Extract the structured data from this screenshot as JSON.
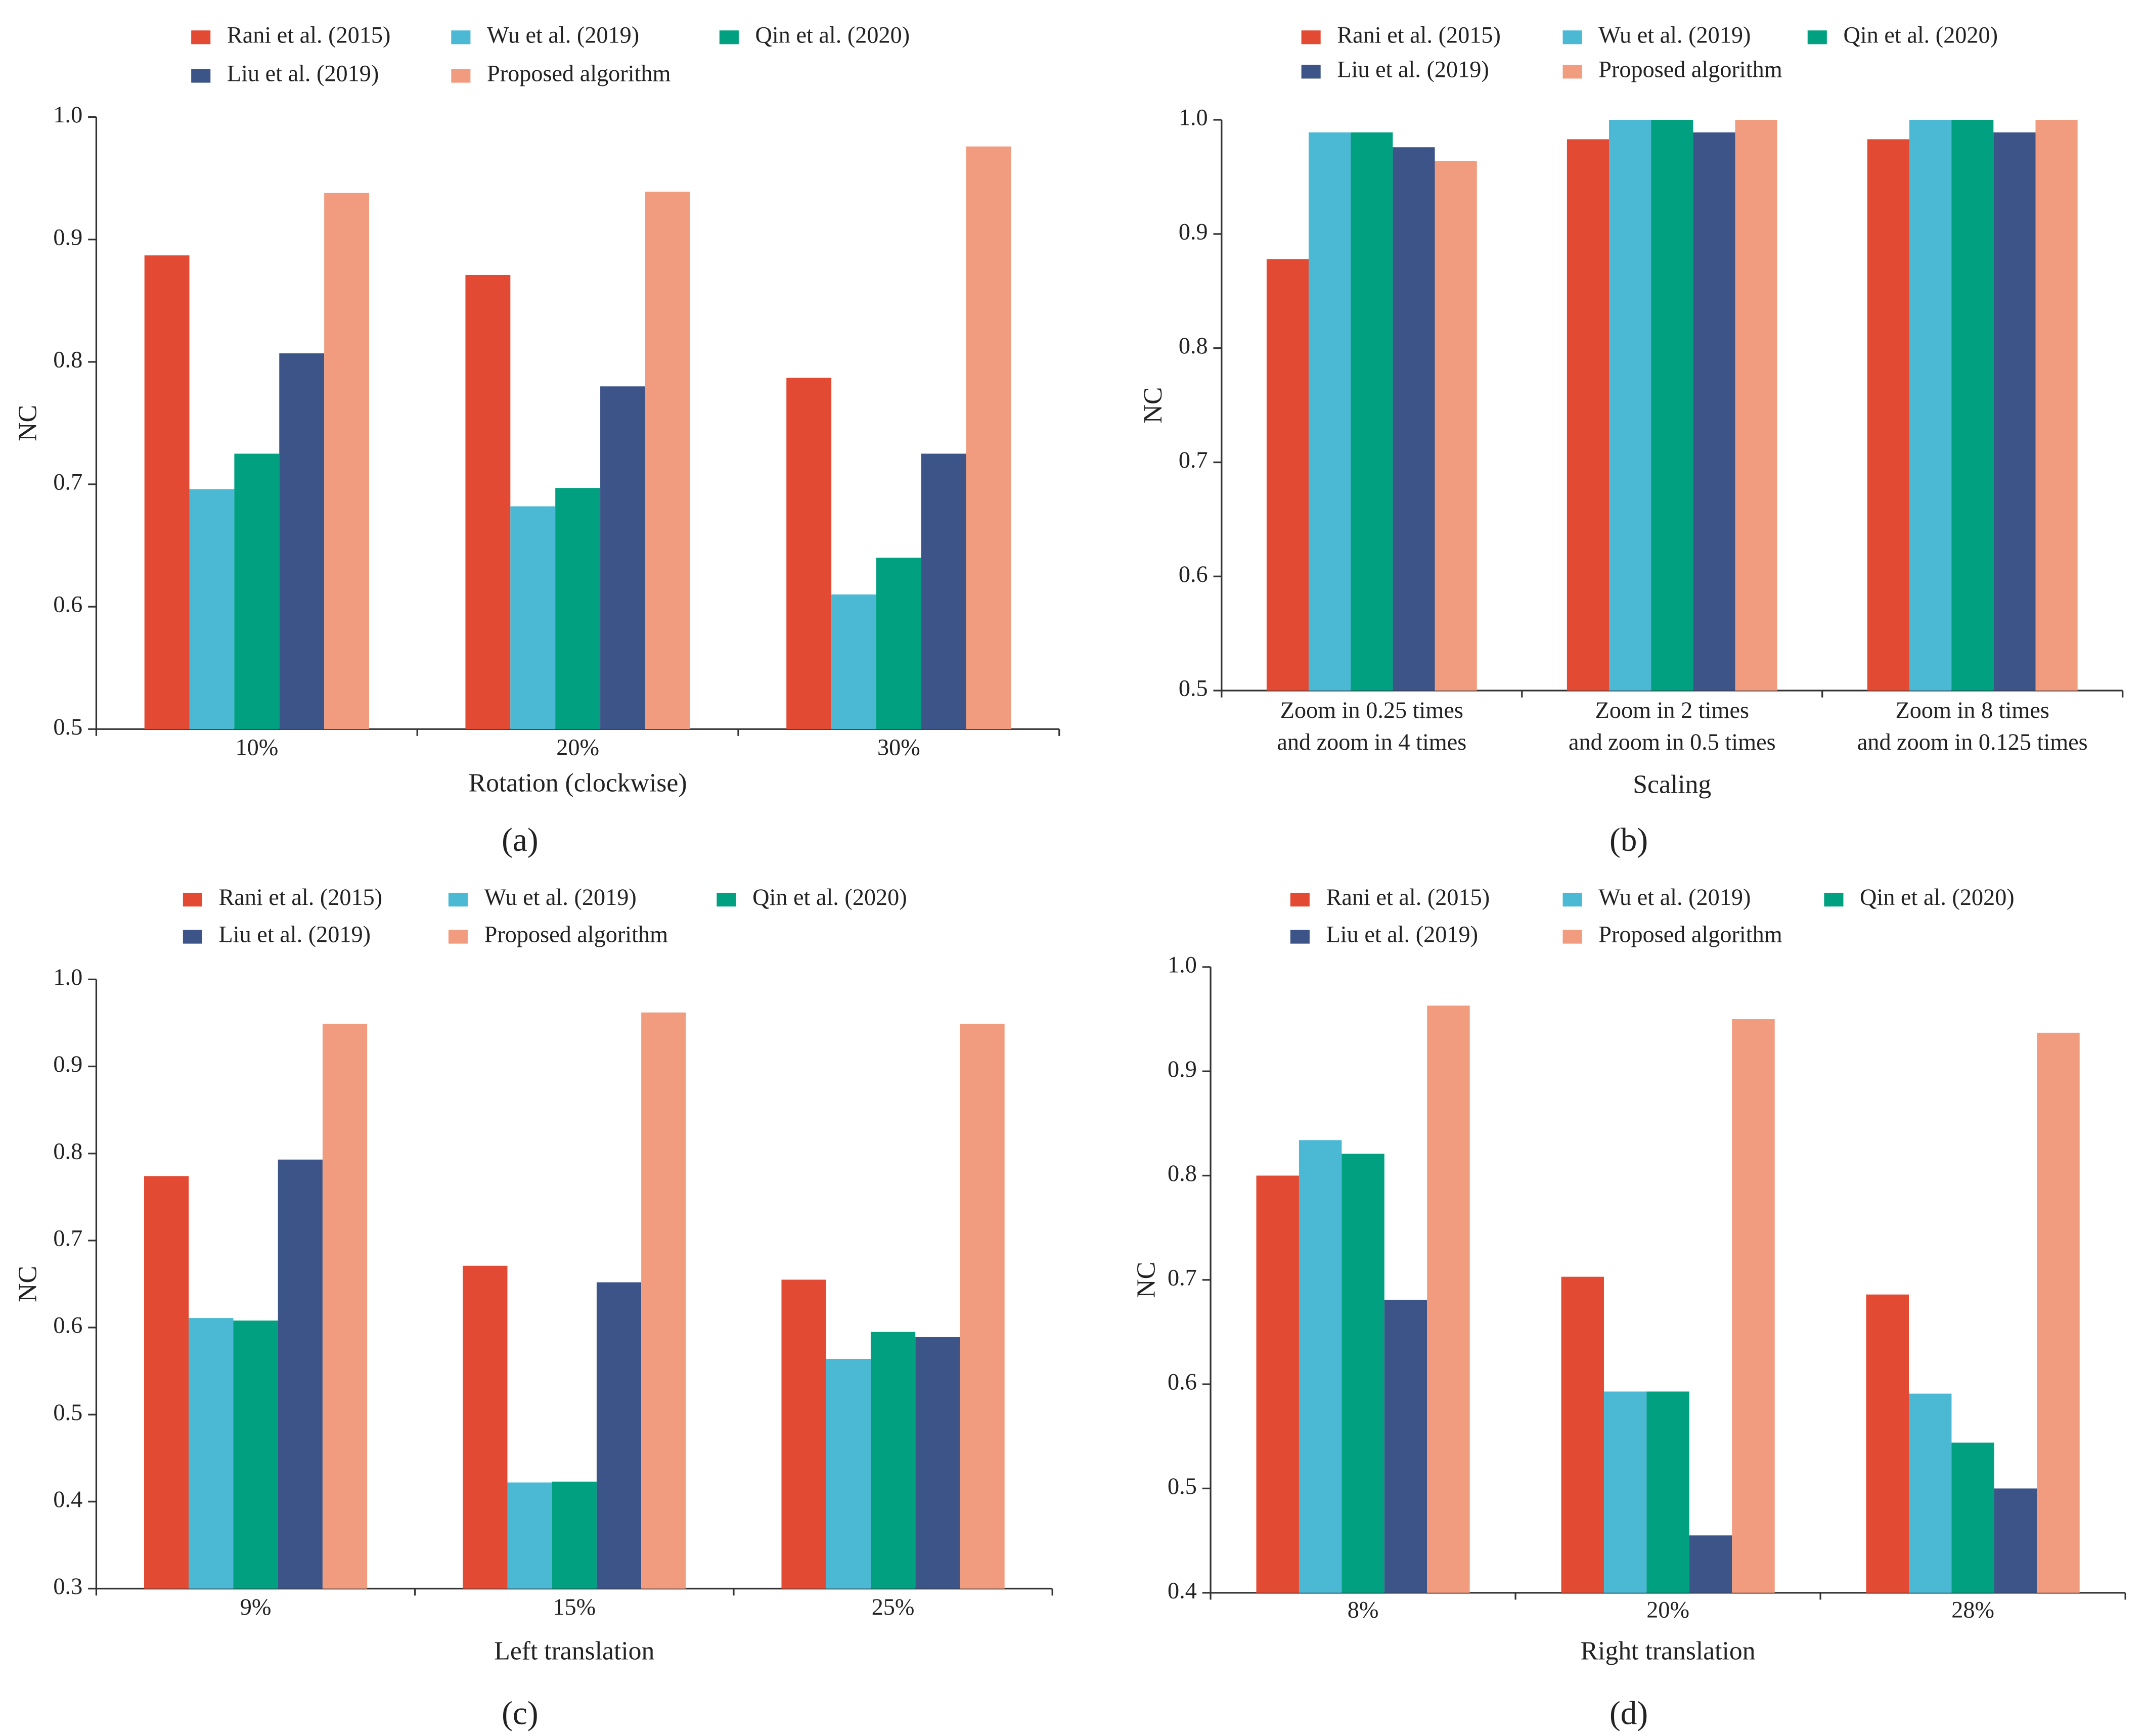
{
  "chart_data": [
    {
      "type": "bar",
      "panel_label": "(a)",
      "x_label": "Rotation (clockwise)",
      "y_label": "NC",
      "categories": [
        "10%",
        "20%",
        "30%"
      ],
      "series": [
        {
          "name": "Rani et al. (2015)",
          "color": "#e34a33",
          "values": [
            0.887,
            0.871,
            0.787
          ]
        },
        {
          "name": "Wu et al. (2019)",
          "color": "#4bb8d4",
          "values": [
            0.696,
            0.682,
            0.61
          ]
        },
        {
          "name": "Qin et al. (2020)",
          "color": "#00a080",
          "values": [
            0.725,
            0.697,
            0.64
          ]
        },
        {
          "name": "Liu et al. (2019)",
          "color": "#3c5488",
          "values": [
            0.807,
            0.78,
            0.725
          ]
        },
        {
          "name": "Proposed algorithm",
          "color": "#f19c7e",
          "values": [
            0.938,
            0.939,
            0.976
          ]
        }
      ],
      "ylim": [
        0.5,
        1.0
      ],
      "yticks": [
        0.5,
        0.6,
        0.7,
        0.8,
        0.9,
        {
          "value": 1.0,
          "label": "1.0"
        }
      ]
    },
    {
      "type": "bar",
      "panel_label": "(b)",
      "x_label": "Scaling",
      "y_label": "NC",
      "categories": [
        [
          "Zoom in 0.25 times",
          "and zoom in 4 times"
        ],
        [
          "Zoom in 2 times",
          "and zoom in 0.5 times"
        ],
        [
          "Zoom in 8 times",
          "and zoom in 0.125 times"
        ]
      ],
      "series": [
        {
          "name": "Rani et al. (2015)",
          "color": "#e34a33",
          "values": [
            0.878,
            0.983,
            0.983
          ]
        },
        {
          "name": "Wu et al. (2019)",
          "color": "#4bb8d4",
          "values": [
            0.989,
            1.0,
            1.0
          ]
        },
        {
          "name": "Qin et al. (2020)",
          "color": "#00a080",
          "values": [
            0.989,
            1.0,
            1.0
          ]
        },
        {
          "name": "Liu et al. (2019)",
          "color": "#3c5488",
          "values": [
            0.976,
            0.989,
            0.989
          ]
        },
        {
          "name": "Proposed algorithm",
          "color": "#f19c7e",
          "values": [
            0.964,
            1.0,
            1.0
          ]
        }
      ],
      "ylim": [
        0.5,
        1.0
      ],
      "yticks": [
        0.5,
        0.6,
        0.7,
        0.8,
        0.9,
        {
          "value": 1.0,
          "label": "1.0"
        }
      ]
    },
    {
      "type": "bar",
      "panel_label": "(c)",
      "x_label": "Left translation",
      "y_label": "NC",
      "categories": [
        "9%",
        "15%",
        "25%"
      ],
      "series": [
        {
          "name": "Rani et al. (2015)",
          "color": "#e34a33",
          "values": [
            0.774,
            0.671,
            0.655
          ]
        },
        {
          "name": "Wu et al. (2019)",
          "color": "#4bb8d4",
          "values": [
            0.611,
            0.422,
            0.564
          ]
        },
        {
          "name": "Qin et al. (2020)",
          "color": "#00a080",
          "values": [
            0.608,
            0.423,
            0.595
          ]
        },
        {
          "name": "Liu et al. (2019)",
          "color": "#3c5488",
          "values": [
            0.793,
            0.652,
            0.589
          ]
        },
        {
          "name": "Proposed algorithm",
          "color": "#f19c7e",
          "values": [
            0.949,
            0.962,
            0.949
          ]
        }
      ],
      "ylim": [
        0.3,
        1.0
      ],
      "yticks": [
        0.3,
        0.4,
        0.5,
        0.6,
        0.7,
        0.8,
        0.9,
        {
          "value": 1.0,
          "label": "1.0"
        }
      ]
    },
    {
      "type": "bar",
      "panel_label": "(d)",
      "x_label": "Right translation",
      "y_label": "NC",
      "categories": [
        "8%",
        "20%",
        "28%"
      ],
      "series": [
        {
          "name": "Rani et al. (2015)",
          "color": "#e34a33",
          "values": [
            0.8,
            0.703,
            0.686
          ]
        },
        {
          "name": "Wu et al. (2019)",
          "color": "#4bb8d4",
          "values": [
            0.834,
            0.593,
            0.591
          ]
        },
        {
          "name": "Qin et al. (2020)",
          "color": "#00a080",
          "values": [
            0.821,
            0.593,
            0.544
          ]
        },
        {
          "name": "Liu et al. (2019)",
          "color": "#3c5488",
          "values": [
            0.681,
            0.455,
            0.5
          ]
        },
        {
          "name": "Proposed algorithm",
          "color": "#f19c7e",
          "values": [
            0.963,
            0.95,
            0.937
          ]
        }
      ],
      "ylim": [
        0.4,
        1.0
      ],
      "yticks": [
        0.4,
        0.5,
        0.6,
        0.7,
        0.8,
        0.9,
        {
          "value": 1.0,
          "label": "1.0"
        }
      ]
    }
  ]
}
